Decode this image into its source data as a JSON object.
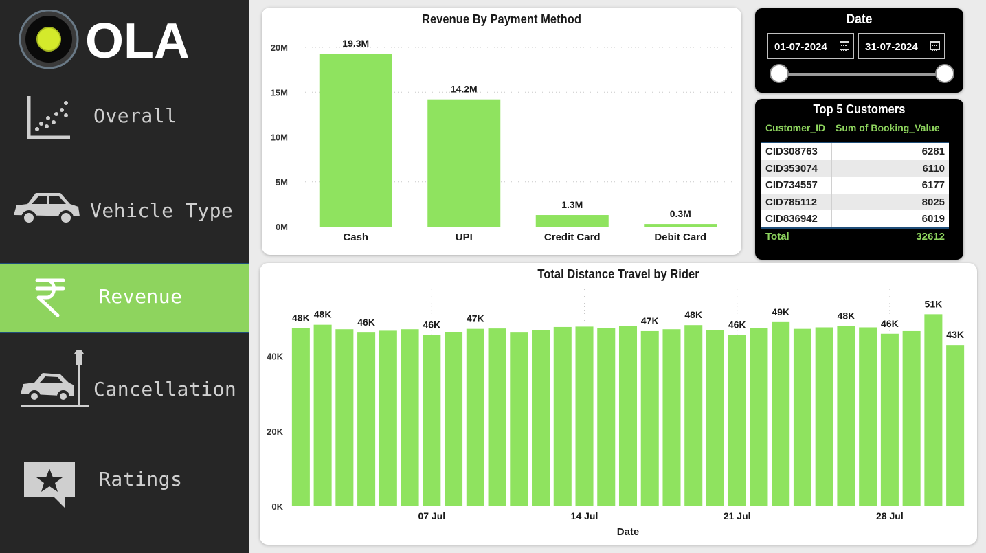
{
  "sidebar": {
    "logo_text": "OLA",
    "items": [
      {
        "label": "Overall",
        "icon": "scatter-chart-icon",
        "active": false
      },
      {
        "label": "Vehicle Type",
        "icon": "car-icon",
        "active": false
      },
      {
        "label": "Revenue",
        "icon": "rupee-icon",
        "active": true
      },
      {
        "label": "Cancellation",
        "icon": "car-crash-icon",
        "active": false
      },
      {
        "label": "Ratings",
        "icon": "star-chat-icon",
        "active": false
      }
    ],
    "colors": {
      "background": "#262626",
      "active": "#8ed45e",
      "text": "#cfcfcf"
    }
  },
  "date_slicer": {
    "title": "Date",
    "start": "01-07-2024",
    "end": "31-07-2024"
  },
  "top_customers": {
    "title": "Top 5 Customers",
    "columns": [
      "Customer_ID",
      "Sum of Booking_Value"
    ],
    "rows": [
      [
        "CID308763",
        "6281"
      ],
      [
        "CID353074",
        "6110"
      ],
      [
        "CID734557",
        "6177"
      ],
      [
        "CID785112",
        "8025"
      ],
      [
        "CID836942",
        "6019"
      ]
    ],
    "total_label": "Total",
    "total_value": "32612"
  },
  "chart_data": [
    {
      "type": "bar",
      "title": "Revenue By Payment Method",
      "categories": [
        "Cash",
        "UPI",
        "Credit Card",
        "Debit Card"
      ],
      "values": [
        19.3,
        14.2,
        1.3,
        0.3
      ],
      "data_labels": [
        "19.3M",
        "14.2M",
        "1.3M",
        "0.3M"
      ],
      "unit": "M",
      "yticks": [
        "0M",
        "5M",
        "10M",
        "15M",
        "20M"
      ],
      "ylim": [
        0,
        20
      ],
      "xlabel": "",
      "ylabel": "",
      "grid": true,
      "color": "#8fe35f"
    },
    {
      "type": "bar",
      "title": "Total Distance Travel by Rider",
      "xlabel": "Date",
      "ylabel": "",
      "x": [
        "01 Jul",
        "02 Jul",
        "03 Jul",
        "04 Jul",
        "05 Jul",
        "06 Jul",
        "07 Jul",
        "08 Jul",
        "09 Jul",
        "10 Jul",
        "11 Jul",
        "12 Jul",
        "13 Jul",
        "14 Jul",
        "15 Jul",
        "16 Jul",
        "17 Jul",
        "18 Jul",
        "19 Jul",
        "20 Jul",
        "21 Jul",
        "22 Jul",
        "23 Jul",
        "24 Jul",
        "25 Jul",
        "26 Jul",
        "27 Jul",
        "28 Jul",
        "29 Jul",
        "30 Jul",
        "31 Jul"
      ],
      "values": [
        47.5,
        48.4,
        47.2,
        46.3,
        46.8,
        47.2,
        45.7,
        46.4,
        47.3,
        47.4,
        46.3,
        46.9,
        47.8,
        47.9,
        47.6,
        48.0,
        46.7,
        47.2,
        48.3,
        47.0,
        45.7,
        47.6,
        49.1,
        47.3,
        47.7,
        48.1,
        47.7,
        46.0,
        46.7,
        51.2,
        43.0
      ],
      "data_labels": [
        "48K",
        "48K",
        "",
        "46K",
        "",
        "",
        "46K",
        "",
        "47K",
        "",
        "",
        "",
        "",
        "",
        "",
        "",
        "47K",
        "",
        "48K",
        "",
        "46K",
        "",
        "49K",
        "",
        "",
        "48K",
        "",
        "46K",
        "",
        "51K",
        "43K"
      ],
      "xticks": [
        "07 Jul",
        "14 Jul",
        "21 Jul",
        "28 Jul"
      ],
      "yticks": [
        "0K",
        "20K",
        "40K"
      ],
      "ylim": [
        0,
        52
      ],
      "unit": "K",
      "grid": true,
      "color": "#8fe35f"
    }
  ]
}
